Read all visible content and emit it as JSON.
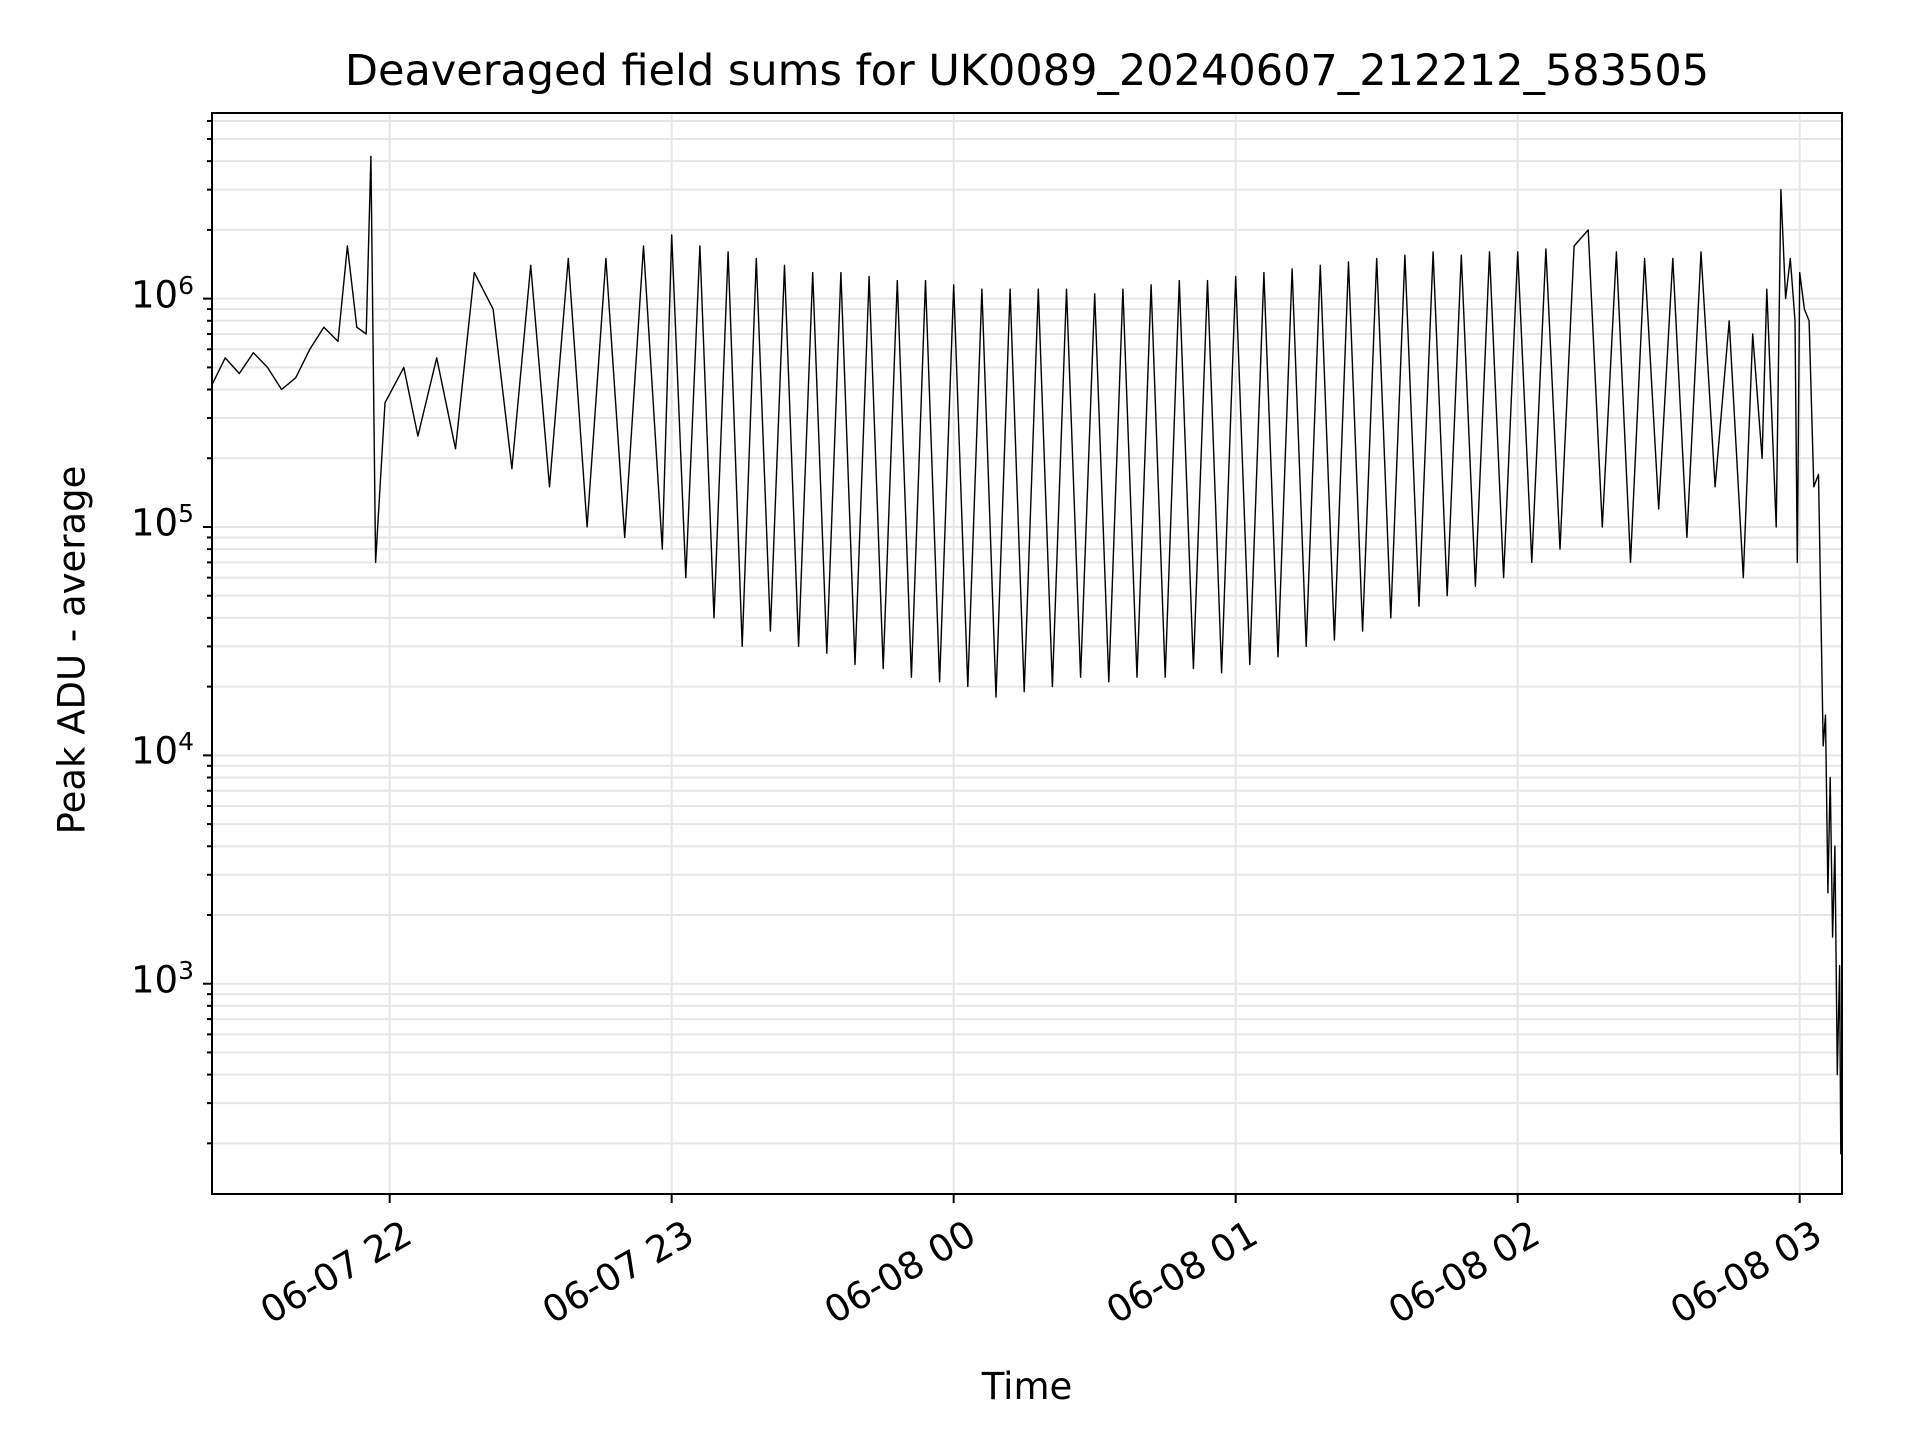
{
  "chart_data": {
    "type": "line",
    "title": "Deaveraged field sums for UK0089_20240607_212212_583505",
    "xlabel": "Time",
    "ylabel": "Peak ADU - average",
    "yscale": "log",
    "ylim": [
      120,
      6500000
    ],
    "xlim": [
      "2024-06-07 21:22:12",
      "2024-06-08 03:09:00"
    ],
    "x_ticks": [
      {
        "label": "06-07 22",
        "time": "2024-06-07 22:00"
      },
      {
        "label": "06-07 23",
        "time": "2024-06-07 23:00"
      },
      {
        "label": "06-08 00",
        "time": "2024-06-08 00:00"
      },
      {
        "label": "06-08 01",
        "time": "2024-06-08 01:00"
      },
      {
        "label": "06-08 02",
        "time": "2024-06-08 02:00"
      },
      {
        "label": "06-08 03",
        "time": "2024-06-08 03:00"
      }
    ],
    "y_ticks": [
      {
        "base": "10",
        "exp": "3",
        "value": 1000
      },
      {
        "base": "10",
        "exp": "4",
        "value": 10000
      },
      {
        "base": "10",
        "exp": "5",
        "value": 100000
      },
      {
        "base": "10",
        "exp": "6",
        "value": 1000000
      }
    ],
    "grid": true,
    "line_color": "#000000",
    "series": [
      {
        "points": [
          [
            "2024-06-07 21:22:12",
            420000
          ],
          [
            "2024-06-07 21:25",
            550000
          ],
          [
            "2024-06-07 21:28",
            470000
          ],
          [
            "2024-06-07 21:31",
            580000
          ],
          [
            "2024-06-07 21:34",
            500000
          ],
          [
            "2024-06-07 21:37",
            400000
          ],
          [
            "2024-06-07 21:40",
            450000
          ],
          [
            "2024-06-07 21:43",
            600000
          ],
          [
            "2024-06-07 21:46",
            750000
          ],
          [
            "2024-06-07 21:49",
            650000
          ],
          [
            "2024-06-07 21:51",
            1700000
          ],
          [
            "2024-06-07 21:53",
            750000
          ],
          [
            "2024-06-07 21:55",
            700000
          ],
          [
            "2024-06-07 21:56",
            4200000
          ],
          [
            "2024-06-07 21:57",
            70000
          ],
          [
            "2024-06-07 21:59",
            350000
          ],
          [
            "2024-06-07 22:03",
            500000
          ],
          [
            "2024-06-07 22:06",
            250000
          ],
          [
            "2024-06-07 22:10",
            550000
          ],
          [
            "2024-06-07 22:14",
            220000
          ],
          [
            "2024-06-07 22:18",
            1300000
          ],
          [
            "2024-06-07 22:22",
            900000
          ],
          [
            "2024-06-07 22:26",
            180000
          ],
          [
            "2024-06-07 22:30",
            1400000
          ],
          [
            "2024-06-07 22:34",
            150000
          ],
          [
            "2024-06-07 22:38",
            1500000
          ],
          [
            "2024-06-07 22:42",
            100000
          ],
          [
            "2024-06-07 22:46",
            1500000
          ],
          [
            "2024-06-07 22:50",
            90000
          ],
          [
            "2024-06-07 22:54",
            1700000
          ],
          [
            "2024-06-07 22:58",
            80000
          ],
          [
            "2024-06-07 23:00",
            1900000
          ],
          [
            "2024-06-07 23:03",
            60000
          ],
          [
            "2024-06-07 23:06",
            1700000
          ],
          [
            "2024-06-07 23:09",
            40000
          ],
          [
            "2024-06-07 23:12",
            1600000
          ],
          [
            "2024-06-07 23:15",
            30000
          ],
          [
            "2024-06-07 23:18",
            1500000
          ],
          [
            "2024-06-07 23:21",
            35000
          ],
          [
            "2024-06-07 23:24",
            1400000
          ],
          [
            "2024-06-07 23:27",
            30000
          ],
          [
            "2024-06-07 23:30",
            1300000
          ],
          [
            "2024-06-07 23:33",
            28000
          ],
          [
            "2024-06-07 23:36",
            1300000
          ],
          [
            "2024-06-07 23:39",
            25000
          ],
          [
            "2024-06-07 23:42",
            1250000
          ],
          [
            "2024-06-07 23:45",
            24000
          ],
          [
            "2024-06-07 23:48",
            1200000
          ],
          [
            "2024-06-07 23:51",
            22000
          ],
          [
            "2024-06-07 23:54",
            1200000
          ],
          [
            "2024-06-07 23:57",
            21000
          ],
          [
            "2024-06-08 00:00",
            1150000
          ],
          [
            "2024-06-08 00:03",
            20000
          ],
          [
            "2024-06-08 00:06",
            1100000
          ],
          [
            "2024-06-08 00:09",
            18000
          ],
          [
            "2024-06-08 00:12",
            1100000
          ],
          [
            "2024-06-08 00:15",
            19000
          ],
          [
            "2024-06-08 00:18",
            1100000
          ],
          [
            "2024-06-08 00:21",
            20000
          ],
          [
            "2024-06-08 00:24",
            1100000
          ],
          [
            "2024-06-08 00:27",
            22000
          ],
          [
            "2024-06-08 00:30",
            1050000
          ],
          [
            "2024-06-08 00:33",
            21000
          ],
          [
            "2024-06-08 00:36",
            1100000
          ],
          [
            "2024-06-08 00:39",
            22000
          ],
          [
            "2024-06-08 00:42",
            1150000
          ],
          [
            "2024-06-08 00:45",
            22000
          ],
          [
            "2024-06-08 00:48",
            1200000
          ],
          [
            "2024-06-08 00:51",
            24000
          ],
          [
            "2024-06-08 00:54",
            1200000
          ],
          [
            "2024-06-08 00:57",
            23000
          ],
          [
            "2024-06-08 01:00",
            1250000
          ],
          [
            "2024-06-08 01:03",
            25000
          ],
          [
            "2024-06-08 01:06",
            1300000
          ],
          [
            "2024-06-08 01:09",
            27000
          ],
          [
            "2024-06-08 01:12",
            1350000
          ],
          [
            "2024-06-08 01:15",
            30000
          ],
          [
            "2024-06-08 01:18",
            1400000
          ],
          [
            "2024-06-08 01:21",
            32000
          ],
          [
            "2024-06-08 01:24",
            1450000
          ],
          [
            "2024-06-08 01:27",
            35000
          ],
          [
            "2024-06-08 01:30",
            1500000
          ],
          [
            "2024-06-08 01:33",
            40000
          ],
          [
            "2024-06-08 01:36",
            1550000
          ],
          [
            "2024-06-08 01:39",
            45000
          ],
          [
            "2024-06-08 01:42",
            1600000
          ],
          [
            "2024-06-08 01:45",
            50000
          ],
          [
            "2024-06-08 01:48",
            1550000
          ],
          [
            "2024-06-08 01:51",
            55000
          ],
          [
            "2024-06-08 01:54",
            1600000
          ],
          [
            "2024-06-08 01:57",
            60000
          ],
          [
            "2024-06-08 02:00",
            1600000
          ],
          [
            "2024-06-08 02:03",
            70000
          ],
          [
            "2024-06-08 02:06",
            1650000
          ],
          [
            "2024-06-08 02:09",
            80000
          ],
          [
            "2024-06-08 02:12",
            1700000
          ],
          [
            "2024-06-08 02:15",
            2000000
          ],
          [
            "2024-06-08 02:18",
            100000
          ],
          [
            "2024-06-08 02:21",
            1600000
          ],
          [
            "2024-06-08 02:24",
            70000
          ],
          [
            "2024-06-08 02:27",
            1500000
          ],
          [
            "2024-06-08 02:30",
            120000
          ],
          [
            "2024-06-08 02:33",
            1500000
          ],
          [
            "2024-06-08 02:36",
            90000
          ],
          [
            "2024-06-08 02:39",
            1600000
          ],
          [
            "2024-06-08 02:42",
            150000
          ],
          [
            "2024-06-08 02:45",
            800000
          ],
          [
            "2024-06-08 02:48",
            60000
          ],
          [
            "2024-06-08 02:50",
            700000
          ],
          [
            "2024-06-08 02:52",
            200000
          ],
          [
            "2024-06-08 02:53",
            1100000
          ],
          [
            "2024-06-08 02:55",
            100000
          ],
          [
            "2024-06-08 02:56",
            3000000
          ],
          [
            "2024-06-08 02:57",
            1000000
          ],
          [
            "2024-06-08 02:58",
            1500000
          ],
          [
            "2024-06-08 02:59",
            800000
          ],
          [
            "2024-06-08 02:59:30",
            70000
          ],
          [
            "2024-06-08 03:00",
            1300000
          ],
          [
            "2024-06-08 03:01",
            900000
          ],
          [
            "2024-06-08 03:02",
            800000
          ],
          [
            "2024-06-08 03:03",
            150000
          ],
          [
            "2024-06-08 03:04",
            170000
          ],
          [
            "2024-06-08 03:05",
            11000
          ],
          [
            "2024-06-08 03:05:30",
            15000
          ],
          [
            "2024-06-08 03:06",
            2500
          ],
          [
            "2024-06-08 03:06:30",
            8000
          ],
          [
            "2024-06-08 03:07",
            1600
          ],
          [
            "2024-06-08 03:07:30",
            4000
          ],
          [
            "2024-06-08 03:08",
            400
          ],
          [
            "2024-06-08 03:08:30",
            1200
          ],
          [
            "2024-06-08 03:08:45",
            180
          ],
          [
            "2024-06-08 03:09",
            500
          ]
        ]
      }
    ]
  }
}
